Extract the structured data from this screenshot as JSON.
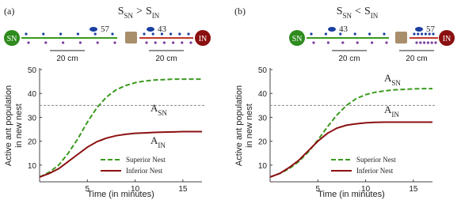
{
  "chart_data": [
    {
      "type": "line",
      "panel": "(a)",
      "title": {
        "left": "S",
        "left_sub": "SN",
        "relation": ">",
        "right": "S",
        "right_sub": "IN"
      },
      "inset": {
        "left_nest": "SN",
        "right_nest": "IN",
        "left_count": 57,
        "right_count": 43,
        "left_distance": "20 cm",
        "right_distance": "20 cm"
      },
      "x_label": "Time (in minutes)",
      "y_label": [
        "Active ant population",
        "in new nest"
      ],
      "x": [
        0,
        1,
        2,
        3,
        4,
        5,
        6,
        7,
        8,
        9,
        10,
        11,
        12,
        13,
        14,
        15,
        16,
        17
      ],
      "series": [
        {
          "name": "Superior Nest",
          "color": "#3a9a1e",
          "dash": true,
          "values": [
            5,
            7,
            10,
            15,
            21,
            28,
            34,
            38.5,
            41.5,
            43.3,
            44.5,
            45.2,
            45.6,
            45.8,
            46,
            46,
            46,
            46
          ]
        },
        {
          "name": "Inferior Nest",
          "color": "#8b1010",
          "dash": false,
          "values": [
            5,
            6.5,
            8.5,
            11.5,
            14.5,
            17.5,
            19.8,
            21.3,
            22.3,
            22.9,
            23.3,
            23.5,
            23.7,
            23.8,
            23.9,
            24,
            24,
            24
          ]
        }
      ],
      "annotations": [
        {
          "base": "A",
          "sub": "SN"
        },
        {
          "base": "A",
          "sub": "IN"
        }
      ],
      "hline": 35,
      "legend": "lower right",
      "xlim": [
        0,
        17
      ],
      "ylim": [
        3,
        50
      ],
      "xticks": [
        5,
        10,
        15
      ],
      "yticks": [
        10,
        20,
        30,
        40,
        50
      ]
    },
    {
      "type": "line",
      "panel": "(b)",
      "title": {
        "left": "S",
        "left_sub": "SN",
        "relation": "<",
        "right": "S",
        "right_sub": "IN"
      },
      "inset": {
        "left_nest": "SN",
        "right_nest": "IN",
        "left_count": 43,
        "right_count": 57,
        "left_distance": "20 cm",
        "right_distance": "20 cm"
      },
      "x_label": "Time (in minutes)",
      "y_label": [
        "Active ant population",
        "in new nest"
      ],
      "x": [
        0,
        1,
        2,
        3,
        4,
        5,
        6,
        7,
        8,
        9,
        10,
        11,
        12,
        13,
        14,
        15,
        16,
        17
      ],
      "series": [
        {
          "name": "Superior Nest",
          "color": "#3a9a1e",
          "dash": true,
          "values": [
            5,
            6.5,
            8.5,
            11.5,
            15.5,
            20.5,
            26,
            31,
            35,
            37.8,
            39.5,
            40.5,
            41.1,
            41.5,
            41.7,
            41.9,
            42,
            42
          ]
        },
        {
          "name": "Inferior Nest",
          "color": "#8b1010",
          "dash": false,
          "values": [
            5,
            6.5,
            9,
            12,
            16,
            20,
            23.3,
            25.5,
            26.7,
            27.3,
            27.7,
            27.9,
            28,
            28,
            28,
            28,
            28,
            28
          ]
        }
      ],
      "annotations": [
        {
          "base": "A",
          "sub": "SN"
        },
        {
          "base": "A",
          "sub": "IN"
        }
      ],
      "hline": 35,
      "legend": "lower right",
      "xlim": [
        0,
        17
      ],
      "ylim": [
        3,
        50
      ],
      "xticks": [
        5,
        10,
        15
      ],
      "yticks": [
        10,
        20,
        30,
        40,
        50
      ]
    }
  ]
}
